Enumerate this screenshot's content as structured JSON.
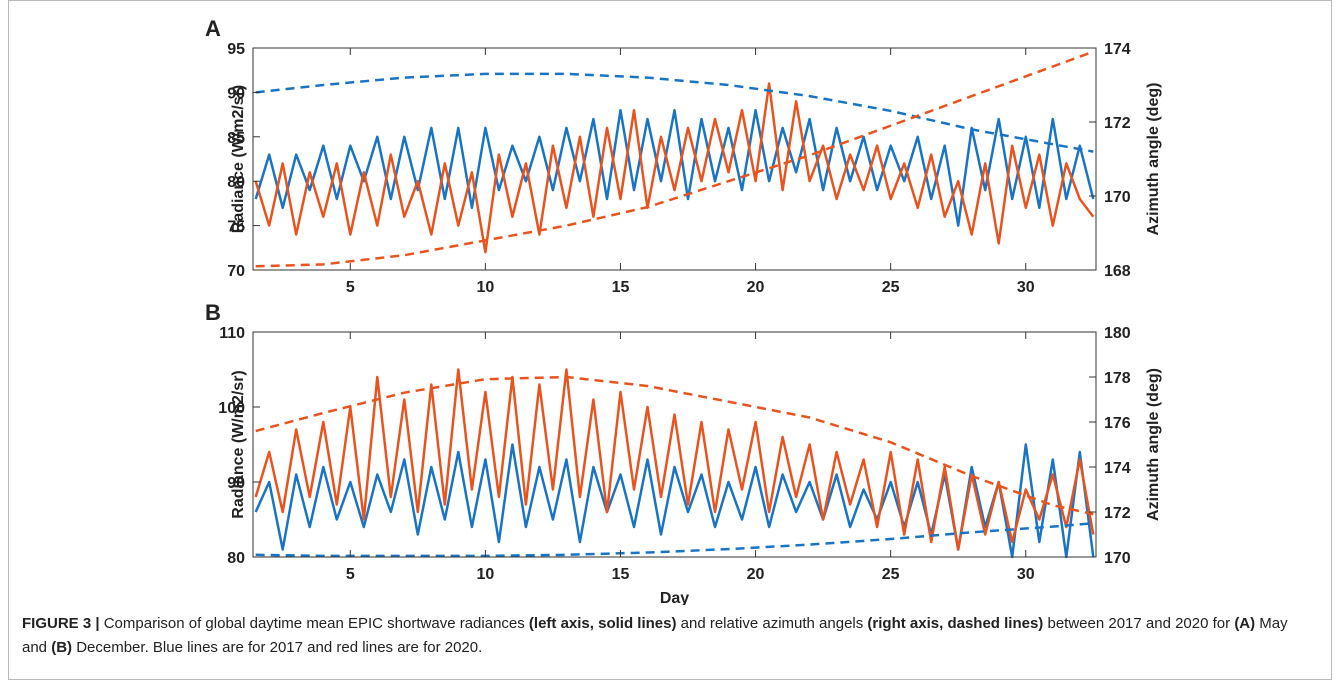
{
  "chart_data": [
    {
      "type": "line",
      "panel_label": "A",
      "ylabel": "Radiance (W/m2/sr)",
      "y2label": "Azimuth angle (deg)",
      "xlim": [
        1.4,
        32.6
      ],
      "xticks": [
        5,
        10,
        15,
        20,
        25,
        30
      ],
      "ylim": [
        70,
        95
      ],
      "yticks": [
        70,
        75,
        80,
        85,
        90,
        95
      ],
      "y2lim": [
        168,
        174
      ],
      "y2ticks": [
        168,
        170,
        172,
        174
      ],
      "series": [
        {
          "color": "#1a74c4",
          "linestyle": "solid",
          "axis": "y",
          "x": [
            1.5,
            2,
            2.5,
            3,
            3.5,
            4,
            4.5,
            5,
            5.5,
            6,
            6.5,
            7,
            7.5,
            8,
            8.5,
            9,
            9.5,
            10,
            10.5,
            11,
            11.5,
            12,
            12.5,
            13,
            13.5,
            14,
            14.5,
            15,
            15.5,
            16,
            16.5,
            17,
            17.5,
            18,
            18.5,
            19,
            19.5,
            20,
            20.5,
            21,
            21.5,
            22,
            22.5,
            23,
            23.5,
            24,
            24.5,
            25,
            25.5,
            26,
            26.5,
            27,
            27.5,
            28,
            28.5,
            29,
            29.5,
            30,
            30.5,
            31,
            31.5,
            32,
            32.5
          ],
          "values": [
            78,
            83,
            77,
            83,
            79,
            84,
            78,
            84,
            80,
            85,
            78,
            85,
            79,
            86,
            78,
            86,
            77,
            86,
            79,
            84,
            80,
            85,
            79,
            86,
            80,
            87,
            78,
            88,
            79,
            87,
            80,
            88,
            78,
            87,
            80,
            86,
            79,
            88,
            80,
            86,
            81,
            87,
            79,
            86,
            80,
            85,
            79,
            84,
            80,
            85,
            78,
            84,
            75,
            86,
            79,
            87,
            78,
            85,
            77,
            87,
            78,
            84,
            78
          ]
        },
        {
          "color": "#e8541f",
          "linestyle": "solid",
          "axis": "y",
          "x": [
            1.5,
            2,
            2.5,
            3,
            3.5,
            4,
            4.5,
            5,
            5.5,
            6,
            6.5,
            7,
            7.5,
            8,
            8.5,
            9,
            9.5,
            10,
            10.5,
            11,
            11.5,
            12,
            12.5,
            13,
            13.5,
            14,
            14.5,
            15,
            15.5,
            16,
            16.5,
            17,
            17.5,
            18,
            18.5,
            19,
            19.5,
            20,
            20.5,
            21,
            21.5,
            22,
            22.5,
            23,
            23.5,
            24,
            24.5,
            25,
            25.5,
            26,
            26.5,
            27,
            27.5,
            28,
            28.5,
            29,
            29.5,
            30,
            30.5,
            31,
            31.5,
            32,
            32.5
          ],
          "values": [
            80,
            75,
            82,
            74,
            81,
            76,
            82,
            74,
            81,
            75,
            83,
            76,
            80,
            74,
            82,
            75,
            81,
            72,
            83,
            76,
            82,
            74,
            84,
            77,
            85,
            76,
            86,
            78,
            88,
            77,
            85,
            79,
            86,
            80,
            87,
            81,
            88,
            80,
            91,
            79,
            89,
            80,
            84,
            78,
            83,
            79,
            84,
            78,
            82,
            77,
            83,
            76,
            80,
            74,
            82,
            73,
            84,
            77,
            83,
            75,
            82,
            78,
            76
          ]
        },
        {
          "color": "#1a74c4",
          "linestyle": "dashed",
          "axis": "y2",
          "x": [
            1.5,
            4,
            7,
            10,
            13,
            16,
            19,
            22,
            25,
            28,
            31,
            32.5
          ],
          "values": [
            172.8,
            173.0,
            173.2,
            173.3,
            173.3,
            173.2,
            173.0,
            172.7,
            172.3,
            171.8,
            171.4,
            171.2
          ]
        },
        {
          "color": "#e8541f",
          "linestyle": "dashed",
          "axis": "y2",
          "x": [
            1.5,
            4,
            7,
            10,
            13,
            16,
            19,
            22,
            25,
            28,
            31,
            32.5
          ],
          "values": [
            168.1,
            168.15,
            168.4,
            168.8,
            169.2,
            169.7,
            170.4,
            171.1,
            171.9,
            172.7,
            173.5,
            173.9
          ]
        }
      ]
    },
    {
      "type": "line",
      "panel_label": "B",
      "ylabel": "Radiance (W/m2/sr)",
      "y2label": "Azimuth angle (deg)",
      "xlabel": "Day",
      "xlim": [
        1.4,
        32.6
      ],
      "xticks": [
        5,
        10,
        15,
        20,
        25,
        30
      ],
      "ylim": [
        80,
        110
      ],
      "yticks": [
        80,
        90,
        100,
        110
      ],
      "y2lim": [
        170,
        180
      ],
      "y2ticks": [
        170,
        172,
        174,
        176,
        178,
        180
      ],
      "series": [
        {
          "color": "#1a74c4",
          "linestyle": "solid",
          "axis": "y",
          "x": [
            1.5,
            2,
            2.5,
            3,
            3.5,
            4,
            4.5,
            5,
            5.5,
            6,
            6.5,
            7,
            7.5,
            8,
            8.5,
            9,
            9.5,
            10,
            10.5,
            11,
            11.5,
            12,
            12.5,
            13,
            13.5,
            14,
            14.5,
            15,
            15.5,
            16,
            16.5,
            17,
            17.5,
            18,
            18.5,
            19,
            19.5,
            20,
            20.5,
            21,
            21.5,
            22,
            22.5,
            23,
            23.5,
            24,
            24.5,
            25,
            25.5,
            26,
            26.5,
            27,
            27.5,
            28,
            28.5,
            29,
            29.5,
            30,
            30.5,
            31,
            31.5,
            32,
            32.5
          ],
          "values": [
            86,
            90,
            81,
            91,
            84,
            92,
            85,
            90,
            84,
            91,
            86,
            93,
            83,
            92,
            85,
            94,
            84,
            93,
            82,
            95,
            84,
            92,
            85,
            93,
            82,
            92,
            86,
            91,
            84,
            93,
            83,
            92,
            86,
            91,
            84,
            90,
            85,
            92,
            84,
            91,
            86,
            90,
            85,
            91,
            84,
            89,
            85,
            90,
            84,
            90,
            83,
            91,
            81,
            92,
            84,
            90,
            80,
            95,
            82,
            93,
            80,
            94,
            80
          ]
        },
        {
          "color": "#e8541f",
          "linestyle": "solid",
          "axis": "y",
          "x": [
            1.5,
            2,
            2.5,
            3,
            3.5,
            4,
            4.5,
            5,
            5.5,
            6,
            6.5,
            7,
            7.5,
            8,
            8.5,
            9,
            9.5,
            10,
            10.5,
            11,
            11.5,
            12,
            12.5,
            13,
            13.5,
            14,
            14.5,
            15,
            15.5,
            16,
            16.5,
            17,
            17.5,
            18,
            18.5,
            19,
            19.5,
            20,
            20.5,
            21,
            21.5,
            22,
            22.5,
            23,
            23.5,
            24,
            24.5,
            25,
            25.5,
            26,
            26.5,
            27,
            27.5,
            28,
            28.5,
            29,
            29.5,
            30,
            30.5,
            31,
            31.5,
            32,
            32.5
          ],
          "values": [
            88,
            94,
            86,
            97,
            88,
            98,
            87,
            100,
            85,
            104,
            88,
            101,
            86,
            103,
            87,
            105,
            89,
            102,
            88,
            104,
            87,
            103,
            89,
            105,
            88,
            101,
            86,
            102,
            89,
            100,
            88,
            99,
            87,
            98,
            86,
            97,
            89,
            98,
            86,
            96,
            88,
            95,
            85,
            94,
            87,
            93,
            84,
            94,
            83,
            93,
            82,
            92,
            81,
            91,
            83,
            90,
            82,
            89,
            85,
            91,
            84,
            93,
            83
          ]
        },
        {
          "color": "#e8541f",
          "linestyle": "dashed",
          "axis": "y2",
          "x": [
            1.5,
            4,
            7,
            10,
            13,
            16,
            19,
            22,
            25,
            28,
            31,
            32.5
          ],
          "values": [
            175.6,
            176.4,
            177.3,
            177.9,
            178.0,
            177.6,
            176.9,
            176.2,
            175.1,
            173.6,
            172.3,
            171.9
          ]
        },
        {
          "color": "#1a74c4",
          "linestyle": "dashed",
          "axis": "y2",
          "x": [
            1.5,
            4,
            7,
            10,
            13,
            16,
            19,
            22,
            25,
            28,
            31,
            32.5
          ],
          "values": [
            170.1,
            170.05,
            170.05,
            170.05,
            170.1,
            170.2,
            170.35,
            170.55,
            170.8,
            171.1,
            171.35,
            171.5
          ]
        }
      ]
    }
  ],
  "caption": [
    "FIGURE 3 |",
    " Comparison of global daytime mean EPIC shortwave radiances ",
    "(left axis, solid lines)",
    " and relative azimuth angels ",
    "(right axis, dashed lines)",
    " between 2017 and 2020 for ",
    "(A)",
    " May and ",
    "(B)",
    " December. Blue lines are for 2017 and red lines are for 2020."
  ]
}
